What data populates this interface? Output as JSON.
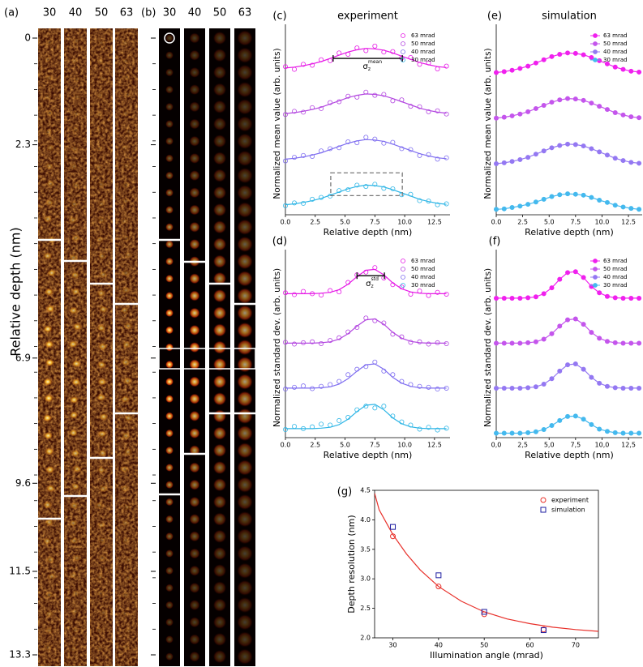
{
  "image_panels": {
    "a": {
      "label": "(a)",
      "columns": [
        "30",
        "40",
        "50",
        "63"
      ],
      "ylabel": "Relative depth (nm)",
      "depth_lim": [
        0,
        13.3
      ],
      "depth_ticks": [
        0,
        2.3,
        6.9,
        9.6,
        11.5,
        13.3
      ]
    },
    "b": {
      "label": "(b)",
      "columns": [
        "30",
        "40",
        "50",
        "63"
      ]
    }
  },
  "chart_data": [
    {
      "type": "scatter",
      "label": "(c)",
      "title": "experiment",
      "xlabel": "Relative depth (nm)",
      "ylabel": "Normalized mean value (arb. units)",
      "annotation": {
        "base": "σ",
        "sub": "z",
        "sup": "mean"
      },
      "x": [
        0,
        0.75,
        1.5,
        2.25,
        3,
        3.75,
        4.5,
        5.25,
        6,
        6.75,
        7.5,
        8.25,
        9,
        9.75,
        10.5,
        11.25,
        12,
        12.75,
        13.5
      ],
      "xlim": [
        0,
        13.8
      ],
      "ylim": [
        0,
        4
      ],
      "legend": "upper right",
      "xticks": [
        {
          "value": 0,
          "label": "0.0"
        },
        2.5,
        {
          "value": 5,
          "label": "5.0"
        },
        7.5,
        {
          "value": 10,
          "label": "10.0"
        },
        12.5
      ],
      "series": [
        {
          "name": "63 mrad",
          "color": "#e619e6",
          "values": [
            3.25,
            3.19,
            3.3,
            3.28,
            3.4,
            3.38,
            3.55,
            3.52,
            3.66,
            3.6,
            3.7,
            3.57,
            3.58,
            3.44,
            3.45,
            3.3,
            3.33,
            3.2,
            3.26
          ],
          "fit": [
            3.22,
            3.24,
            3.27,
            3.31,
            3.36,
            3.43,
            3.5,
            3.57,
            3.62,
            3.65,
            3.64,
            3.61,
            3.55,
            3.48,
            3.41,
            3.34,
            3.29,
            3.25,
            3.23
          ]
        },
        {
          "name": "50 mrad",
          "color": "#b347e0",
          "values": [
            2.2,
            2.27,
            2.25,
            2.35,
            2.33,
            2.46,
            2.48,
            2.6,
            2.58,
            2.69,
            2.62,
            2.64,
            2.5,
            2.52,
            2.38,
            2.37,
            2.26,
            2.28,
            2.21
          ],
          "fit": [
            2.22,
            2.24,
            2.27,
            2.31,
            2.36,
            2.43,
            2.5,
            2.57,
            2.62,
            2.65,
            2.64,
            2.61,
            2.55,
            2.48,
            2.41,
            2.34,
            2.29,
            2.25,
            2.23
          ]
        },
        {
          "name": "40 mrad",
          "color": "#7f6ef0",
          "values": [
            1.18,
            1.26,
            1.3,
            1.28,
            1.4,
            1.45,
            1.47,
            1.6,
            1.58,
            1.7,
            1.66,
            1.57,
            1.59,
            1.45,
            1.43,
            1.3,
            1.32,
            1.22,
            1.25
          ],
          "fit": [
            1.22,
            1.24,
            1.27,
            1.31,
            1.36,
            1.43,
            1.5,
            1.57,
            1.62,
            1.65,
            1.64,
            1.61,
            1.55,
            1.48,
            1.41,
            1.34,
            1.29,
            1.25,
            1.23
          ]
        },
        {
          "name": "30 mrad",
          "color": "#2fb6e6",
          "values": [
            0.2,
            0.26,
            0.25,
            0.34,
            0.38,
            0.41,
            0.53,
            0.55,
            0.65,
            0.62,
            0.67,
            0.58,
            0.57,
            0.44,
            0.45,
            0.31,
            0.3,
            0.22,
            0.24
          ],
          "fit": [
            0.22,
            0.24,
            0.27,
            0.31,
            0.36,
            0.43,
            0.5,
            0.57,
            0.62,
            0.65,
            0.64,
            0.61,
            0.55,
            0.48,
            0.41,
            0.34,
            0.29,
            0.25,
            0.23
          ]
        }
      ]
    },
    {
      "type": "scatter",
      "label": "(d)",
      "xlabel": "Relative depth (nm)",
      "ylabel": "Normalized standard dev. (arb. units)",
      "annotation": {
        "base": "σ",
        "sub": "z",
        "sup": "std"
      },
      "x": [
        0,
        0.75,
        1.5,
        2.25,
        3,
        3.75,
        4.5,
        5.25,
        6,
        6.75,
        7.5,
        8.25,
        9,
        9.75,
        10.5,
        11.25,
        12,
        12.75,
        13.5
      ],
      "xlim": [
        0,
        13.8
      ],
      "ylim": [
        0,
        4
      ],
      "legend": "upper right",
      "xticks": [
        {
          "value": 0,
          "label": "0.0"
        },
        2.5,
        {
          "value": 5,
          "label": "5.0"
        },
        7.5,
        {
          "value": 10,
          "label": "10.0"
        },
        12.5
      ],
      "series": [
        {
          "name": "63 mrad",
          "color": "#e619e6",
          "values": [
            3.22,
            3.18,
            3.25,
            3.2,
            3.17,
            3.27,
            3.24,
            3.45,
            3.62,
            3.68,
            3.78,
            3.55,
            3.4,
            3.35,
            3.19,
            3.26,
            3.16,
            3.23,
            3.19
          ],
          "fit": [
            3.2,
            3.2,
            3.2,
            3.2,
            3.21,
            3.23,
            3.29,
            3.41,
            3.58,
            3.72,
            3.74,
            3.62,
            3.44,
            3.31,
            3.24,
            3.21,
            3.2,
            3.2,
            3.2
          ]
        },
        {
          "name": "50 mrad",
          "color": "#b347e0",
          "values": [
            2.12,
            2.08,
            2.11,
            2.13,
            2.09,
            2.16,
            2.22,
            2.35,
            2.45,
            2.66,
            2.6,
            2.55,
            2.3,
            2.24,
            2.12,
            2.13,
            2.08,
            2.11,
            2.09
          ],
          "fit": [
            2.1,
            2.1,
            2.1,
            2.1,
            2.11,
            2.13,
            2.19,
            2.31,
            2.48,
            2.62,
            2.64,
            2.52,
            2.34,
            2.21,
            2.14,
            2.11,
            2.1,
            2.1,
            2.1
          ]
        },
        {
          "name": "40 mrad",
          "color": "#7f6ef0",
          "values": [
            1.08,
            1.12,
            1.15,
            1.09,
            1.14,
            1.18,
            1.25,
            1.4,
            1.52,
            1.58,
            1.68,
            1.48,
            1.4,
            1.25,
            1.18,
            1.14,
            1.12,
            1.08,
            1.1
          ],
          "fit": [
            1.1,
            1.1,
            1.1,
            1.1,
            1.11,
            1.13,
            1.19,
            1.31,
            1.48,
            1.62,
            1.64,
            1.52,
            1.34,
            1.21,
            1.14,
            1.11,
            1.1,
            1.1,
            1.1
          ]
        },
        {
          "name": "30 mrad",
          "color": "#2fb6e6",
          "values": [
            0.18,
            0.25,
            0.2,
            0.24,
            0.3,
            0.28,
            0.38,
            0.45,
            0.62,
            0.7,
            0.66,
            0.7,
            0.48,
            0.35,
            0.28,
            0.19,
            0.23,
            0.17,
            0.21
          ],
          "fit": [
            0.2,
            0.2,
            0.2,
            0.2,
            0.21,
            0.23,
            0.29,
            0.41,
            0.58,
            0.72,
            0.74,
            0.62,
            0.44,
            0.31,
            0.24,
            0.21,
            0.2,
            0.2,
            0.2
          ]
        }
      ]
    },
    {
      "type": "line",
      "label": "(e)",
      "title": "simulation",
      "xlabel": "Relative depth (nm)",
      "ylabel": "Normalized mean value (arb. units)",
      "x": [
        0,
        0.75,
        1.5,
        2.25,
        3,
        3.75,
        4.5,
        5.25,
        6,
        6.75,
        7.5,
        8.25,
        9,
        9.75,
        10.5,
        11.25,
        12,
        12.75,
        13.5
      ],
      "xlim": [
        0,
        13.8
      ],
      "ylim": [
        0,
        4
      ],
      "legend": "upper right",
      "xticks": [
        {
          "value": 0,
          "label": "0.0"
        },
        2.5,
        {
          "value": 5,
          "label": "5.0"
        },
        7.5,
        {
          "value": 10,
          "label": "10.0"
        },
        12.5
      ],
      "series": [
        {
          "name": "63 mrad",
          "color": "#f020ee",
          "values": [
            3.12,
            3.14,
            3.17,
            3.21,
            3.26,
            3.33,
            3.4,
            3.47,
            3.52,
            3.55,
            3.54,
            3.51,
            3.45,
            3.38,
            3.31,
            3.24,
            3.19,
            3.15,
            3.13
          ]
        },
        {
          "name": "50 mrad",
          "color": "#c455ec",
          "values": [
            2.12,
            2.14,
            2.17,
            2.21,
            2.26,
            2.33,
            2.4,
            2.47,
            2.52,
            2.55,
            2.54,
            2.51,
            2.45,
            2.38,
            2.31,
            2.24,
            2.19,
            2.15,
            2.13
          ]
        },
        {
          "name": "40 mrad",
          "color": "#9478f2",
          "values": [
            1.12,
            1.14,
            1.17,
            1.21,
            1.26,
            1.33,
            1.4,
            1.47,
            1.52,
            1.55,
            1.54,
            1.51,
            1.45,
            1.38,
            1.31,
            1.24,
            1.19,
            1.15,
            1.13
          ]
        },
        {
          "name": "30 mrad",
          "color": "#44b9ee",
          "values": [
            0.12,
            0.13,
            0.16,
            0.19,
            0.23,
            0.28,
            0.34,
            0.4,
            0.44,
            0.46,
            0.45,
            0.43,
            0.38,
            0.32,
            0.27,
            0.21,
            0.17,
            0.14,
            0.12
          ]
        }
      ]
    },
    {
      "type": "line",
      "label": "(f)",
      "xlabel": "Relative depth (nm)",
      "ylabel": "Normalized standard dev. (arb. units)",
      "x": [
        0,
        0.75,
        1.5,
        2.25,
        3,
        3.75,
        4.5,
        5.25,
        6,
        6.75,
        7.5,
        8.25,
        9,
        9.75,
        10.5,
        11.25,
        12,
        12.75,
        13.5
      ],
      "xlim": [
        0,
        13.8
      ],
      "ylim": [
        0,
        4
      ],
      "legend": "upper right",
      "xticks": [
        {
          "value": 0,
          "label": "0,0"
        },
        {
          "value": 2.5,
          "label": "2,5"
        },
        {
          "value": 5,
          "label": "5,0"
        },
        {
          "value": 7.5,
          "label": "7,5"
        },
        {
          "value": 10,
          "label": "10,0"
        },
        {
          "value": 12.5,
          "label": "12,5"
        }
      ],
      "series": [
        {
          "name": "63 mrad",
          "color": "#f020ee",
          "values": [
            3.1,
            3.1,
            3.1,
            3.1,
            3.11,
            3.13,
            3.2,
            3.33,
            3.52,
            3.67,
            3.69,
            3.56,
            3.36,
            3.22,
            3.14,
            3.11,
            3.1,
            3.1,
            3.1
          ]
        },
        {
          "name": "50 mrad",
          "color": "#c455ec",
          "values": [
            2.1,
            2.1,
            2.1,
            2.1,
            2.11,
            2.13,
            2.19,
            2.31,
            2.48,
            2.62,
            2.64,
            2.52,
            2.34,
            2.21,
            2.14,
            2.11,
            2.1,
            2.1,
            2.1
          ]
        },
        {
          "name": "40 mrad",
          "color": "#9478f2",
          "values": [
            1.1,
            1.1,
            1.1,
            1.1,
            1.11,
            1.13,
            1.19,
            1.31,
            1.48,
            1.62,
            1.64,
            1.52,
            1.34,
            1.21,
            1.14,
            1.11,
            1.1,
            1.1,
            1.1
          ]
        },
        {
          "name": "30 mrad",
          "color": "#44b9ee",
          "values": [
            0.1,
            0.1,
            0.1,
            0.1,
            0.11,
            0.13,
            0.18,
            0.27,
            0.38,
            0.47,
            0.48,
            0.41,
            0.29,
            0.19,
            0.14,
            0.11,
            0.1,
            0.1,
            0.1
          ]
        }
      ]
    },
    {
      "type": "resolution",
      "label": "(g)",
      "xlabel": "Illumination angle (mrad)",
      "ylabel": "Depth resolution (nm)",
      "xlim": [
        26,
        75
      ],
      "ylim": [
        2,
        4.5
      ],
      "legend": "upper right",
      "xticks": [
        30,
        40,
        50,
        60,
        70
      ],
      "yticks": [
        {
          "value": 2,
          "label": "2.0"
        },
        2.5,
        {
          "value": 3,
          "label": "3.0"
        },
        3.5,
        {
          "value": 4,
          "label": "4.0"
        },
        4.5
      ],
      "series": [
        {
          "name": "experiment",
          "color": "#e8302a",
          "marker": "circle",
          "x": [
            30,
            40,
            50,
            63
          ],
          "values": [
            3.72,
            2.87,
            2.4,
            2.14
          ]
        },
        {
          "name": "simulation",
          "color": "#1c1ca0",
          "marker": "square",
          "x": [
            30,
            40,
            50,
            63
          ],
          "values": [
            3.88,
            3.06,
            2.44,
            2.13
          ]
        }
      ],
      "fit": {
        "color": "#e8302a",
        "x": [
          26,
          27,
          30,
          33,
          36,
          40,
          45,
          50,
          55,
          60,
          65,
          70,
          75
        ],
        "values": [
          4.45,
          4.17,
          3.75,
          3.42,
          3.15,
          2.87,
          2.62,
          2.44,
          2.32,
          2.24,
          2.18,
          2.14,
          2.11
        ]
      }
    }
  ]
}
